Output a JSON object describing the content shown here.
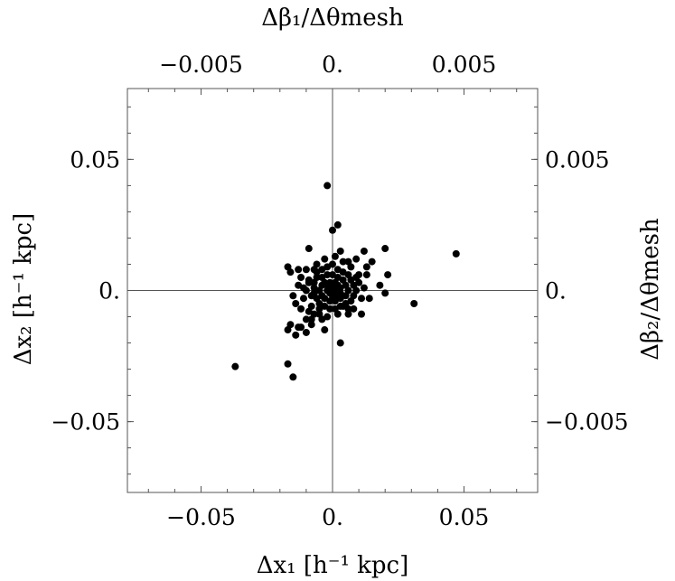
{
  "chart_data": {
    "type": "scatter",
    "xlabel": "Δx₁ [h⁻¹ kpc]",
    "ylabel": "Δx₂ [h⁻¹ kpc]",
    "x2label": "Δβ₁/Δθmesh",
    "y2label": "Δβ₂/Δθmesh",
    "xlim": [
      -0.078,
      0.078
    ],
    "ylim": [
      -0.077,
      0.077
    ],
    "x2lim": [
      -0.0078,
      0.0078
    ],
    "y2lim": [
      -0.0077,
      0.0077
    ],
    "x_ticks": [
      {
        "value": -0.05,
        "label": "−0.05"
      },
      {
        "value": 0,
        "label": "0."
      },
      {
        "value": 0.05,
        "label": "0.05"
      }
    ],
    "y_ticks": [
      {
        "value": -0.05,
        "label": "−0.05"
      },
      {
        "value": 0,
        "label": "0."
      },
      {
        "value": 0.05,
        "label": "0.05"
      }
    ],
    "x2_ticks": [
      {
        "value": -0.005,
        "label": "−0.005"
      },
      {
        "value": 0,
        "label": "0."
      },
      {
        "value": 0.005,
        "label": "0.005"
      }
    ],
    "y2_ticks": [
      {
        "value": -0.005,
        "label": "−0.005"
      },
      {
        "value": 0,
        "label": "0."
      },
      {
        "value": 0.005,
        "label": "0.005"
      }
    ],
    "grid": false,
    "points": [
      [
        -0.002,
        0.04
      ],
      [
        0.002,
        0.025
      ],
      [
        0.0,
        0.023
      ],
      [
        -0.009,
        0.016
      ],
      [
        0.003,
        0.015
      ],
      [
        0.012,
        0.015
      ],
      [
        0.02,
        0.016
      ],
      [
        0.047,
        0.014
      ],
      [
        -0.017,
        0.009
      ],
      [
        -0.016,
        0.007
      ],
      [
        -0.013,
        0.008
      ],
      [
        -0.01,
        0.008
      ],
      [
        -0.006,
        0.01
      ],
      [
        0.006,
        0.011
      ],
      [
        0.009,
        0.012
      ],
      [
        0.015,
        0.011
      ],
      [
        -0.012,
        0.005
      ],
      [
        -0.009,
        0.004
      ],
      [
        0.01,
        0.006
      ],
      [
        0.013,
        0.006
      ],
      [
        0.021,
        0.006
      ],
      [
        0.018,
        0.002
      ],
      [
        -0.01,
        0.0
      ],
      [
        -0.015,
        -0.002
      ],
      [
        -0.011,
        -0.003
      ],
      [
        -0.014,
        -0.005
      ],
      [
        0.02,
        -0.001
      ],
      [
        0.031,
        -0.005
      ],
      [
        -0.008,
        -0.006
      ],
      [
        -0.005,
        -0.007
      ],
      [
        -0.016,
        -0.013
      ],
      [
        -0.017,
        -0.015
      ],
      [
        -0.013,
        -0.014
      ],
      [
        -0.01,
        -0.011
      ],
      [
        -0.008,
        -0.011
      ],
      [
        -0.007,
        -0.009
      ],
      [
        -0.004,
        -0.011
      ],
      [
        -0.002,
        -0.01
      ],
      [
        -0.014,
        -0.017
      ],
      [
        -0.012,
        -0.014
      ],
      [
        -0.01,
        -0.016
      ],
      [
        -0.008,
        -0.013
      ],
      [
        0.006,
        -0.009
      ],
      [
        0.004,
        -0.006
      ],
      [
        0.011,
        -0.009
      ],
      [
        0.008,
        -0.007
      ],
      [
        -0.003,
        -0.015
      ],
      [
        0.003,
        -0.02
      ],
      [
        -0.037,
        -0.029
      ],
      [
        -0.017,
        -0.028
      ],
      [
        -0.015,
        -0.033
      ],
      [
        -0.006,
        0.007
      ],
      [
        -0.004,
        0.008
      ],
      [
        -0.002,
        0.009
      ],
      [
        0.0,
        0.01
      ],
      [
        0.002,
        0.008
      ],
      [
        0.004,
        0.007
      ],
      [
        0.006,
        0.006
      ],
      [
        0.007,
        0.004
      ],
      [
        0.008,
        0.002
      ],
      [
        0.009,
        0.0
      ],
      [
        0.008,
        -0.002
      ],
      [
        0.007,
        -0.004
      ],
      [
        0.005,
        -0.005
      ],
      [
        0.003,
        -0.006
      ],
      [
        0.001,
        -0.007
      ],
      [
        -0.001,
        -0.007
      ],
      [
        -0.003,
        -0.006
      ],
      [
        -0.005,
        -0.005
      ],
      [
        -0.006,
        -0.003
      ],
      [
        -0.007,
        -0.001
      ],
      [
        -0.007,
        0.001
      ],
      [
        -0.007,
        0.003
      ],
      [
        -0.006,
        0.005
      ],
      [
        -0.004,
        0.005
      ],
      [
        -0.002,
        0.006
      ],
      [
        0.0,
        0.006
      ],
      [
        0.002,
        0.005
      ],
      [
        0.004,
        0.004
      ],
      [
        0.005,
        0.002
      ],
      [
        0.006,
        0.0
      ],
      [
        0.005,
        -0.002
      ],
      [
        0.003,
        -0.003
      ],
      [
        0.001,
        -0.004
      ],
      [
        -0.001,
        -0.004
      ],
      [
        -0.003,
        -0.003
      ],
      [
        -0.004,
        -0.002
      ],
      [
        -0.005,
        0.0
      ],
      [
        -0.004,
        0.002
      ],
      [
        -0.003,
        0.003
      ],
      [
        -0.001,
        0.003
      ],
      [
        0.001,
        0.003
      ],
      [
        0.002,
        0.002
      ],
      [
        0.003,
        0.001
      ],
      [
        0.003,
        -0.001
      ],
      [
        0.002,
        -0.002
      ],
      [
        0.0,
        -0.002
      ],
      [
        -0.001,
        -0.001
      ],
      [
        -0.002,
        0.0
      ],
      [
        -0.001,
        0.001
      ],
      [
        0.0,
        0.0
      ],
      [
        0.001,
        0.001
      ],
      [
        0.001,
        -0.001
      ],
      [
        -0.002,
        0.002
      ],
      [
        0.002,
        0.0
      ],
      [
        0.0,
        0.002
      ],
      [
        -0.009,
        0.003
      ],
      [
        -0.008,
        -0.002
      ],
      [
        0.01,
        0.003
      ],
      [
        0.011,
        -0.003
      ],
      [
        0.009,
        0.005
      ],
      [
        -0.003,
        0.012
      ],
      [
        0.001,
        0.013
      ],
      [
        0.004,
        0.011
      ],
      [
        -0.005,
        -0.009
      ],
      [
        0.002,
        -0.009
      ],
      [
        -0.011,
        0.001
      ],
      [
        0.012,
        0.001
      ],
      [
        0.007,
        0.009
      ],
      [
        -0.007,
        0.008
      ],
      [
        0.006,
        -0.007
      ],
      [
        -0.012,
        -0.007
      ],
      [
        -0.009,
        -0.008
      ],
      [
        0.013,
        0.009
      ],
      [
        0.014,
        -0.003
      ],
      [
        -0.013,
        0.002
      ]
    ]
  }
}
